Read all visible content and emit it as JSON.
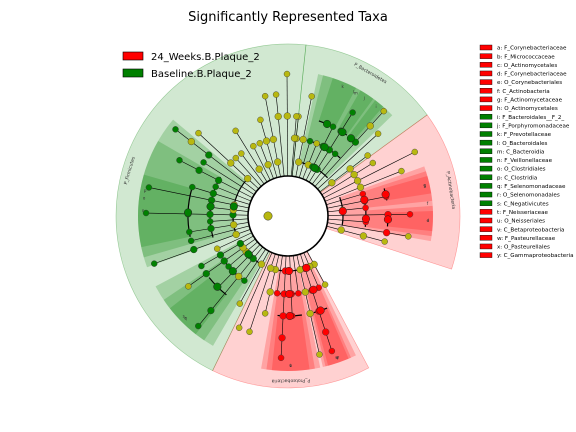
{
  "chart_data": {
    "type": "cladogram",
    "title": "Significantly Represented Taxa",
    "groups": [
      {
        "name": "24_Weeks.B.Plaque_2",
        "color": "#ff0000"
      },
      {
        "name": "Baseline.B.Plaque_2",
        "color": "#008000"
      }
    ],
    "taxa": [
      {
        "key": "a",
        "name": "F_Corynebacteriaceae",
        "group": 0
      },
      {
        "key": "b",
        "name": "F_Micrococcaceae",
        "group": 0
      },
      {
        "key": "c",
        "name": "O_Actinomycetales",
        "group": 0
      },
      {
        "key": "d",
        "name": "F_Corynebacteriaceae",
        "group": 0
      },
      {
        "key": "e",
        "name": "O_Corynebacteriales",
        "group": 0
      },
      {
        "key": "f",
        "name": "C_Actinobacteria",
        "group": 0
      },
      {
        "key": "g",
        "name": "F_Actinomycetaceae",
        "group": 0
      },
      {
        "key": "h",
        "name": "O_Actinomycetales",
        "group": 0
      },
      {
        "key": "i",
        "name": "F_Bacteroidales__F_2_",
        "group": 1
      },
      {
        "key": "j",
        "name": "F_Porphyromonadaceae",
        "group": 1
      },
      {
        "key": "k",
        "name": "F_Prevotellaceae",
        "group": 1
      },
      {
        "key": "l",
        "name": "O_Bacteroidales",
        "group": 1
      },
      {
        "key": "m",
        "name": "C_Bacteroidia",
        "group": 1
      },
      {
        "key": "n",
        "name": "F_Veillonellaceae",
        "group": 1
      },
      {
        "key": "o",
        "name": "O_Clostridiales",
        "group": 1
      },
      {
        "key": "p",
        "name": "C_Clostridia",
        "group": 1
      },
      {
        "key": "q",
        "name": "F_Selenomonadaceae",
        "group": 1
      },
      {
        "key": "r",
        "name": "O_Selenomonadales",
        "group": 1
      },
      {
        "key": "s",
        "name": "C_Negativicutes",
        "group": 1
      },
      {
        "key": "t",
        "name": "F_Neisseriaceae",
        "group": 0
      },
      {
        "key": "u",
        "name": "O_Neisseriales",
        "group": 0
      },
      {
        "key": "v",
        "name": "C_Betaproteobacteria",
        "group": 0
      },
      {
        "key": "w",
        "name": "F_Pasteurellaceae",
        "group": 0
      },
      {
        "key": "x",
        "name": "O_Pasteurellales",
        "group": 0
      },
      {
        "key": "y",
        "name": "C_Gammaproteobacteria",
        "group": 0
      }
    ],
    "phyla": [
      {
        "name": "P_Bacteroidetes",
        "group": 1,
        "from": -84,
        "to": -36
      },
      {
        "name": "P_Actinobacteria",
        "group": 0,
        "from": -36,
        "to": 18
      },
      {
        "name": "P_Proteobacteria",
        "group": 0,
        "from": 62,
        "to": 116
      },
      {
        "name": "P_Firmicutes",
        "group": 1,
        "from": 116,
        "to": 276
      }
    ]
  },
  "colors": {
    "red": "#ff0000",
    "green": "#008000",
    "node_default": "#b8b810",
    "legend_border": "#000000"
  }
}
